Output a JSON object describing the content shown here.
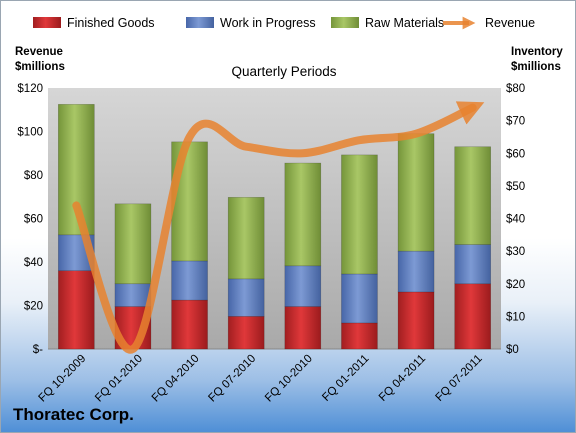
{
  "chart_data": {
    "type": "bar",
    "title": "Quarterly Periods",
    "categories": [
      "FQ 10-2009",
      "FQ 01-2010",
      "FQ 04-2010",
      "FQ 07-2010",
      "FQ 10-2010",
      "FQ 01-2011",
      "FQ 04-2011",
      "FQ 07-2011"
    ],
    "series": [
      {
        "name": "Finished Goods",
        "color": "#c0282a",
        "values": [
          24,
          13,
          15,
          10,
          13,
          8,
          17.5,
          20
        ]
      },
      {
        "name": "Work in Progress",
        "color": "#5b7cbe",
        "values": [
          11,
          7,
          12,
          11.5,
          12.5,
          15,
          12.5,
          12
        ]
      },
      {
        "name": "Raw Materials",
        "color": "#8dad4b",
        "values": [
          40,
          24.5,
          36.5,
          25,
          31.5,
          36.5,
          36,
          30
        ]
      }
    ],
    "line_series": {
      "name": "Revenue",
      "color": "#e8832f",
      "values": [
        44,
        0,
        65,
        62,
        60,
        64,
        66,
        74
      ]
    },
    "left_axis": {
      "label_lines": [
        "Revenue",
        "$millions"
      ],
      "ticks": [
        "$-",
        "$20",
        "$40",
        "$60",
        "$80",
        "$100",
        "$120"
      ],
      "ylim": [
        0,
        120
      ]
    },
    "right_axis": {
      "label_lines": [
        "Inventory",
        "$millions"
      ],
      "ticks": [
        "$0",
        "$10",
        "$20",
        "$30",
        "$40",
        "$50",
        "$60",
        "$70",
        "$80"
      ],
      "ylim": [
        0,
        80
      ]
    },
    "legend_position": "top",
    "grid": false
  },
  "company_name": "Thoratec Corp."
}
